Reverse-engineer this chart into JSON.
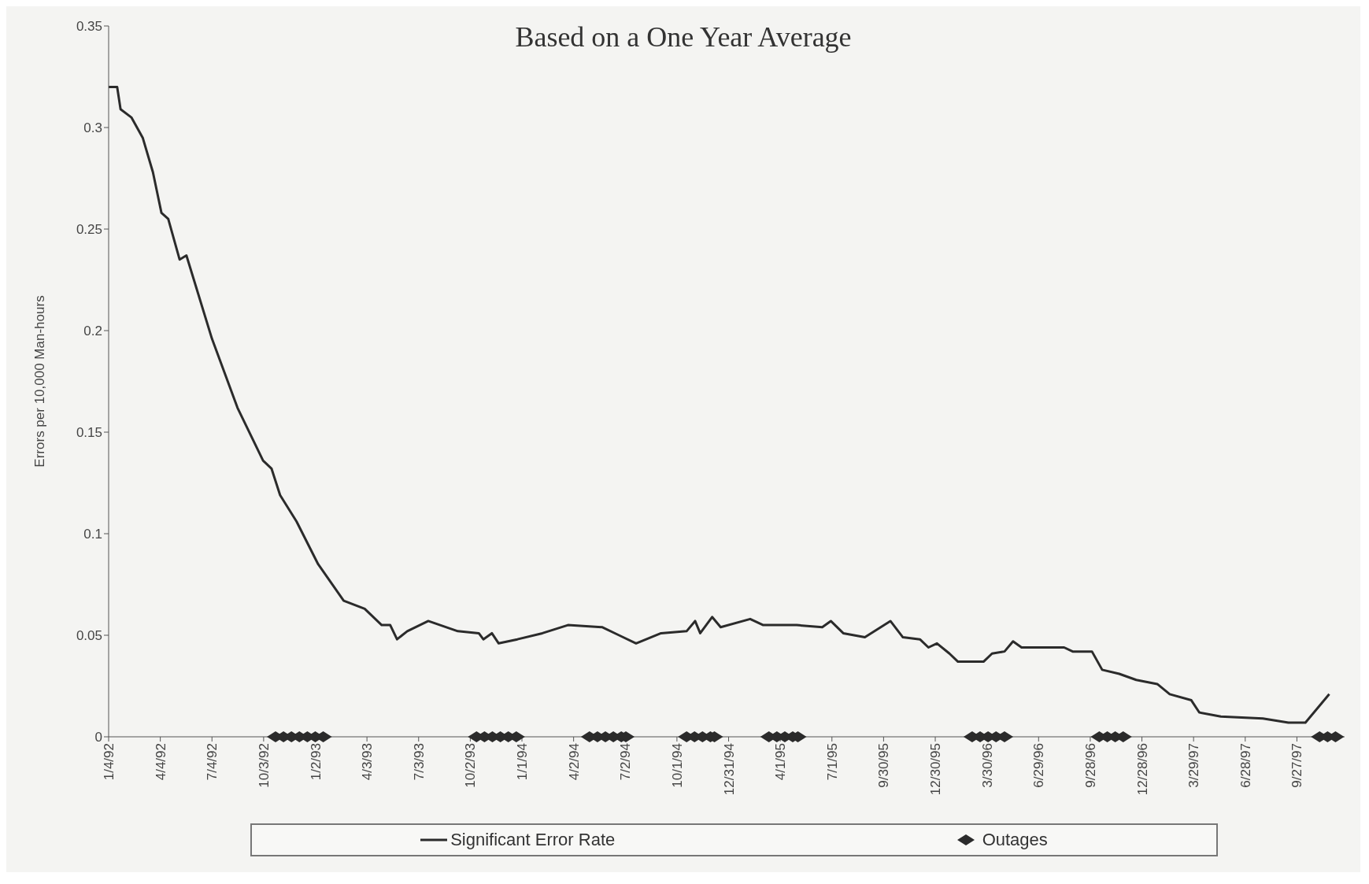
{
  "chart_data": {
    "type": "line",
    "subtitle": "Based on a One Year Average",
    "ylabel": "Errors per 10,000 Man-hours",
    "xlim": [
      "1992-01-04",
      "1997-12-20"
    ],
    "xticks": [
      {
        "value": "1992-01-04",
        "label": "1/4/92"
      },
      {
        "value": "1992-04-04",
        "label": "4/4/92"
      },
      {
        "value": "1992-07-04",
        "label": "7/4/92"
      },
      {
        "value": "1992-10-03",
        "label": "10/3/92"
      },
      {
        "value": "1993-01-02",
        "label": "1/2/93"
      },
      {
        "value": "1993-04-03",
        "label": "4/3/93"
      },
      {
        "value": "1993-07-03",
        "label": "7/3/93"
      },
      {
        "value": "1993-10-02",
        "label": "10/2/93"
      },
      {
        "value": "1994-01-01",
        "label": "1/1/94"
      },
      {
        "value": "1994-04-02",
        "label": "4/2/94"
      },
      {
        "value": "1994-07-02",
        "label": "7/2/94"
      },
      {
        "value": "1994-10-01",
        "label": "10/1/94"
      },
      {
        "value": "1994-12-31",
        "label": "12/31/94"
      },
      {
        "value": "1995-04-01",
        "label": "4/1/95"
      },
      {
        "value": "1995-07-01",
        "label": "7/1/95"
      },
      {
        "value": "1995-09-30",
        "label": "9/30/95"
      },
      {
        "value": "1995-12-30",
        "label": "12/30/95"
      },
      {
        "value": "1996-03-30",
        "label": "3/30/96"
      },
      {
        "value": "1996-06-29",
        "label": "6/29/96"
      },
      {
        "value": "1996-09-28",
        "label": "9/28/96"
      },
      {
        "value": "1996-12-28",
        "label": "12/28/96"
      },
      {
        "value": "1997-03-29",
        "label": "3/29/97"
      },
      {
        "value": "1997-06-28",
        "label": "6/28/97"
      },
      {
        "value": "1997-09-27",
        "label": "9/27/97"
      }
    ],
    "ylim": [
      0,
      0.35
    ],
    "yticks": [
      0,
      0.05,
      0.1,
      0.15,
      0.2,
      0.25,
      0.3,
      0.35
    ],
    "grid": false,
    "legend": "bottom",
    "series": [
      {
        "name": "Significant Error Rate",
        "color": "#2b2b2b",
        "marker": "none",
        "line_style": "solid",
        "x": [
          "1992-01-04",
          "1992-01-19",
          "1992-01-25",
          "1992-02-13",
          "1992-03-04",
          "1992-03-22",
          "1992-04-06",
          "1992-04-18",
          "1992-05-08",
          "1992-05-20",
          "1992-07-04",
          "1992-08-18",
          "1992-10-02",
          "1992-10-17",
          "1992-11-01",
          "1992-11-30",
          "1993-01-07",
          "1993-02-21",
          "1993-03-30",
          "1993-04-29",
          "1993-05-14",
          "1993-05-26",
          "1993-06-13",
          "1993-07-20",
          "1993-09-10",
          "1993-10-17",
          "1993-10-25",
          "1993-11-09",
          "1993-11-21",
          "1993-12-24",
          "1994-02-06",
          "1994-03-23",
          "1994-05-22",
          "1994-06-21",
          "1994-07-21",
          "1994-09-03",
          "1994-10-18",
          "1994-11-02",
          "1994-11-11",
          "1994-12-02",
          "1994-12-17",
          "1995-02-07",
          "1995-03-02",
          "1995-04-30",
          "1995-06-14",
          "1995-06-29",
          "1995-07-21",
          "1995-08-28",
          "1995-10-12",
          "1995-11-03",
          "1995-12-03",
          "1995-12-18",
          "1996-01-02",
          "1996-01-24",
          "1996-02-08",
          "1996-03-24",
          "1996-04-08",
          "1996-04-30",
          "1996-05-15",
          "1996-05-30",
          "1996-08-13",
          "1996-08-28",
          "1996-10-01",
          "1996-10-19",
          "1996-11-18",
          "1996-12-18",
          "1997-01-24",
          "1997-02-15",
          "1997-03-25",
          "1997-04-08",
          "1997-05-16",
          "1997-07-29",
          "1997-09-12",
          "1997-10-12",
          "1997-11-23"
        ],
        "values": [
          0.32,
          0.32,
          0.309,
          0.305,
          0.295,
          0.278,
          0.258,
          0.255,
          0.235,
          0.237,
          0.196,
          0.162,
          0.136,
          0.132,
          0.119,
          0.106,
          0.085,
          0.067,
          0.063,
          0.055,
          0.055,
          0.048,
          0.052,
          0.057,
          0.052,
          0.051,
          0.048,
          0.051,
          0.046,
          0.048,
          0.051,
          0.055,
          0.054,
          0.05,
          0.046,
          0.051,
          0.052,
          0.057,
          0.051,
          0.059,
          0.054,
          0.058,
          0.055,
          0.055,
          0.054,
          0.057,
          0.051,
          0.049,
          0.057,
          0.049,
          0.048,
          0.044,
          0.046,
          0.041,
          0.037,
          0.037,
          0.041,
          0.042,
          0.047,
          0.044,
          0.044,
          0.042,
          0.042,
          0.033,
          0.031,
          0.028,
          0.026,
          0.021,
          0.018,
          0.012,
          0.01,
          0.009,
          0.007,
          0.007,
          0.021
        ]
      },
      {
        "name": "Outages",
        "type": "scatter",
        "color": "#2b2b2b",
        "marker": "diamond",
        "x": [
          "1992-10-24",
          "1992-11-07",
          "1992-11-21",
          "1992-12-05",
          "1992-12-19",
          "1993-01-02",
          "1993-01-16",
          "1993-10-13",
          "1993-10-27",
          "1993-11-10",
          "1993-11-24",
          "1993-12-08",
          "1993-12-22",
          "1994-04-30",
          "1994-05-14",
          "1994-05-28",
          "1994-06-11",
          "1994-06-25",
          "1994-07-03",
          "1994-10-18",
          "1994-11-01",
          "1994-11-15",
          "1994-11-29",
          "1994-12-06",
          "1995-03-12",
          "1995-03-26",
          "1995-04-09",
          "1995-04-23",
          "1995-05-02",
          "1996-03-04",
          "1996-03-18",
          "1996-04-01",
          "1996-04-15",
          "1996-04-30",
          "1996-10-14",
          "1996-10-28",
          "1996-11-11",
          "1996-11-25",
          "1997-11-06",
          "1997-11-20",
          "1997-12-04"
        ],
        "values": [
          0,
          0,
          0,
          0,
          0,
          0,
          0,
          0,
          0,
          0,
          0,
          0,
          0,
          0,
          0,
          0,
          0,
          0,
          0,
          0,
          0,
          0,
          0,
          0,
          0,
          0,
          0,
          0,
          0,
          0,
          0,
          0,
          0,
          0,
          0,
          0,
          0,
          0,
          0,
          0,
          0
        ]
      }
    ]
  }
}
